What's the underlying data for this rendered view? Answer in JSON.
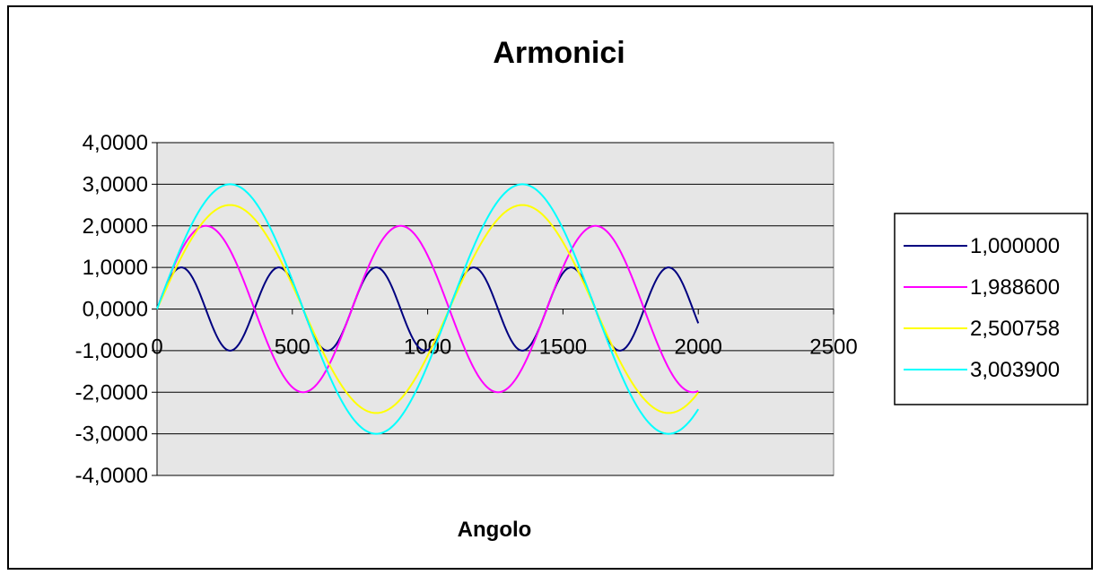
{
  "chart_data": {
    "type": "line",
    "title": "Armonici",
    "xlabel": "Angolo",
    "ylabel": "",
    "xlim": [
      0,
      2500
    ],
    "ylim": [
      -4,
      4
    ],
    "x_ticks": [
      "0",
      "500",
      "1000",
      "1500",
      "2000",
      "2500"
    ],
    "y_ticks": [
      "4,0000",
      "3,0000",
      "2,0000",
      "1,0000",
      "0,0000",
      "-1,0000",
      "-2,0000",
      "-3,0000",
      "-4,0000"
    ],
    "grid": "horizontal major gridlines",
    "plot_background": "#e6e6e6",
    "legend_position": "right",
    "x_range": [
      0,
      2000
    ],
    "series": [
      {
        "name": "1,000000",
        "amplitude": 1.0,
        "period": 360,
        "color": "#000080"
      },
      {
        "name": "1,988600",
        "amplitude": 2.0,
        "period": 720,
        "color": "#ff00ff"
      },
      {
        "name": "2,500758",
        "amplitude": 2.5,
        "period": 1080,
        "color": "#ffff00"
      },
      {
        "name": "3,003900",
        "amplitude": 3.0,
        "period": 1080,
        "color": "#00ffff"
      }
    ]
  }
}
